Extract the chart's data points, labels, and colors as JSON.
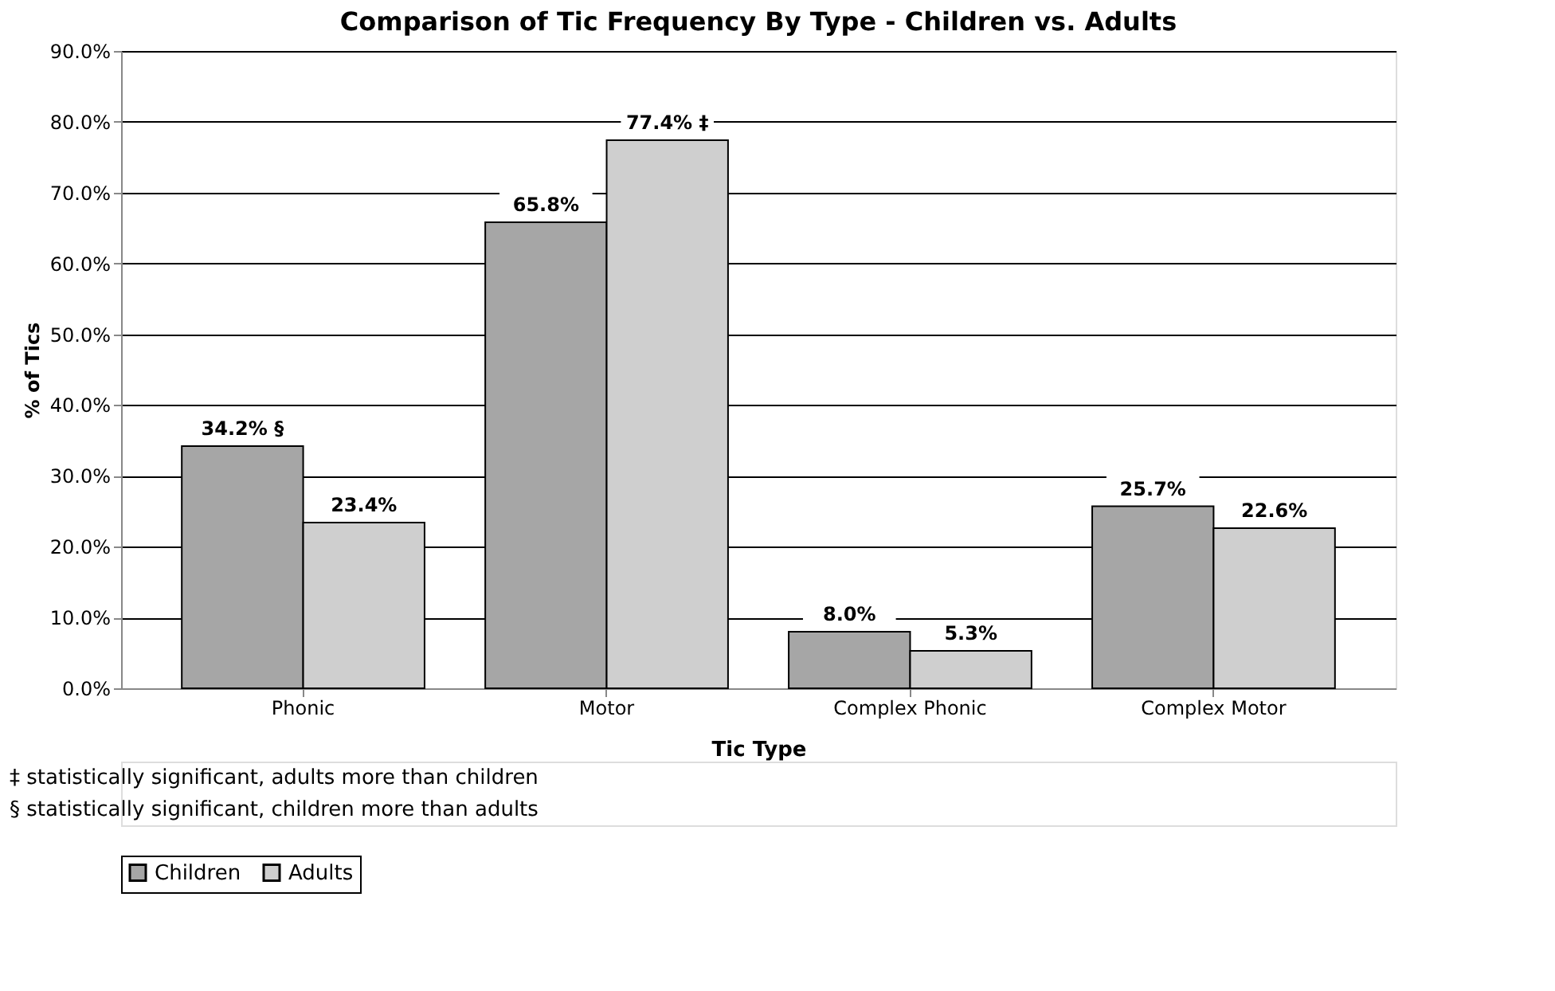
{
  "chart_data": {
    "type": "bar",
    "title": "Comparison of Tic Frequency By Type - Children vs. Adults",
    "xlabel": "Tic Type",
    "ylabel": "% of Tics",
    "categories": [
      "Phonic",
      "Motor",
      "Complex Phonic",
      "Complex Motor"
    ],
    "series": [
      {
        "name": "Children",
        "color": "#a6a6a6",
        "values": [
          34.2,
          65.8,
          8.0,
          25.7
        ],
        "value_labels": [
          "34.2% §",
          "65.8%",
          "8.0%",
          "25.7%"
        ]
      },
      {
        "name": "Adults",
        "color": "#cfcfcf",
        "values": [
          23.4,
          77.4,
          5.3,
          22.6
        ],
        "value_labels": [
          "23.4%",
          "77.4% ‡",
          "5.3%",
          "22.6%"
        ]
      }
    ],
    "ylim": [
      0,
      90
    ],
    "yticks": [
      {
        "value": 0,
        "label": "0.0%"
      },
      {
        "value": 10,
        "label": "10.0%"
      },
      {
        "value": 20,
        "label": "20.0%"
      },
      {
        "value": 30,
        "label": "30.0%"
      },
      {
        "value": 40,
        "label": "40.0%"
      },
      {
        "value": 50,
        "label": "50.0%"
      },
      {
        "value": 60,
        "label": "60.0%"
      },
      {
        "value": 70,
        "label": "70.0%"
      },
      {
        "value": 80,
        "label": "80.0%"
      },
      {
        "value": 90,
        "label": "90.0%"
      }
    ],
    "grid": "y",
    "legend": "bottom",
    "annotations": [
      "‡ statistically significant, adults more than children",
      "§ statistically significant, children more than adults"
    ]
  }
}
